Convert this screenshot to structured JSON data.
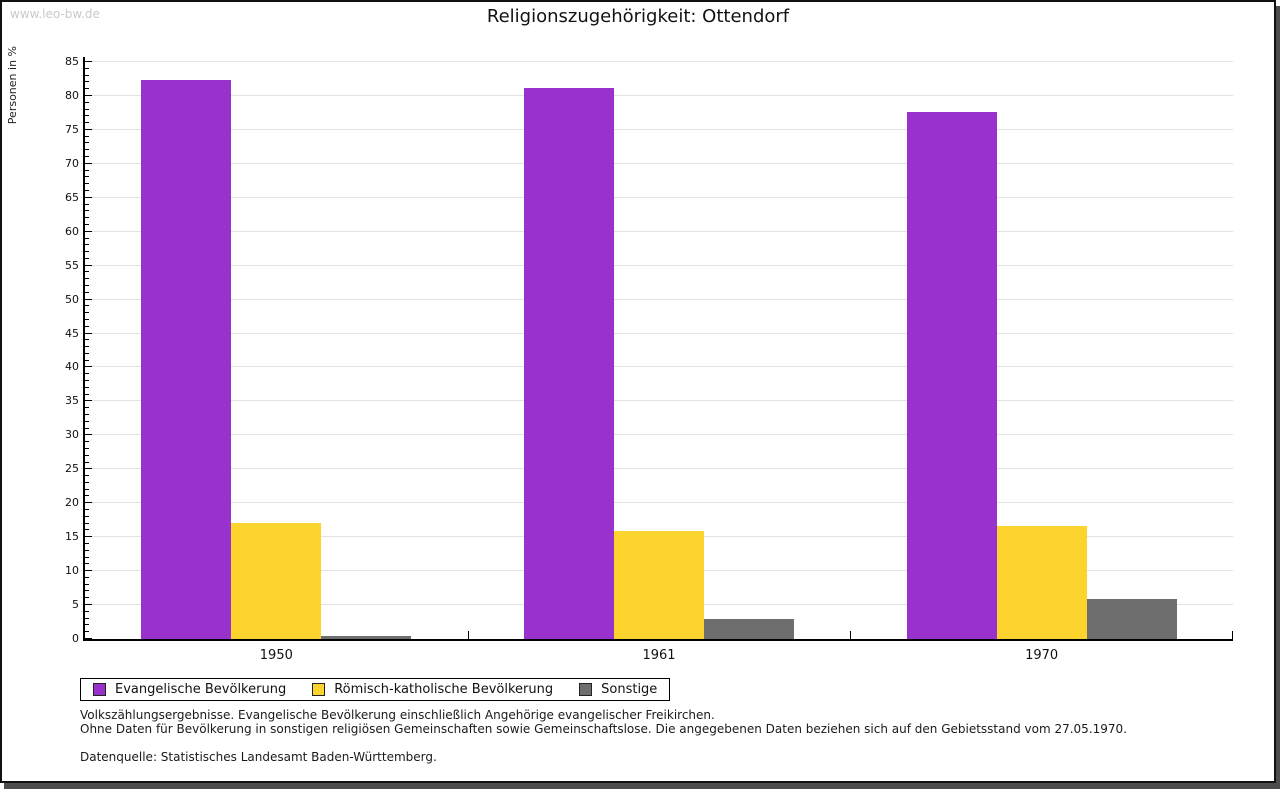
{
  "watermark": "www.leo-bw.de",
  "title": "Religionszugehörigkeit: Ottendorf",
  "chart_data": {
    "type": "bar",
    "title": "Religionszugehörigkeit: Ottendorf",
    "categories": [
      "1950",
      "1961",
      "1970"
    ],
    "series": [
      {
        "name": "Evangelische Bevölkerung",
        "color": "#9932CC",
        "values": [
          82.4,
          81.2,
          77.7
        ]
      },
      {
        "name": "Römisch-katholische Bevölkerung",
        "color": "#FCD42D",
        "values": [
          17.1,
          15.9,
          16.6
        ]
      },
      {
        "name": "Sonstige",
        "color": "#6E6E6E",
        "values": [
          0.5,
          3.0,
          5.9
        ]
      }
    ],
    "xlabel": "",
    "ylabel": "Personen in %",
    "ylim": [
      0,
      85
    ],
    "y_tick_step": 5,
    "y_minor_step": 1,
    "grid": true,
    "legend_position": "bottom-left"
  },
  "footnotes": {
    "line1": "Volkszählungsergebnisse. Evangelische Bevölkerung einschließlich Angehörige evangelischer Freikirchen.",
    "line2": "Ohne Daten für Bevölkerung in sonstigen religiösen Gemeinschaften sowie Gemeinschaftslose. Die angegebenen Daten beziehen sich auf den Gebietsstand vom 27.05.1970.",
    "source": "Datenquelle: Statistisches Landesamt Baden-Württemberg."
  }
}
